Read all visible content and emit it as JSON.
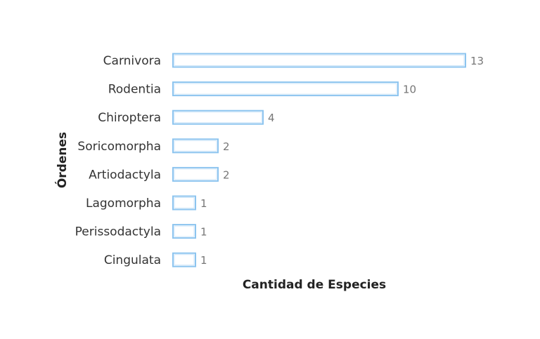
{
  "chart_data": {
    "type": "bar",
    "orientation": "horizontal",
    "categories": [
      "Carnivora",
      "Rodentia",
      "Chiroptera",
      "Soricomorpha",
      "Artiodactyla",
      "Lagomorpha",
      "Perissodactyla",
      "Cingulata"
    ],
    "values": [
      13,
      10,
      4,
      2,
      2,
      1,
      1,
      1
    ],
    "xlabel": "Cantidad de Especies",
    "ylabel": "Órdenes",
    "xlim": [
      0,
      13
    ],
    "grid": false,
    "legend": "none",
    "colors": {
      "bar_stroke": "#8cc4ef",
      "bar_fill": "#ffffff",
      "value_text": "#777777",
      "category_text": "#333333"
    }
  }
}
